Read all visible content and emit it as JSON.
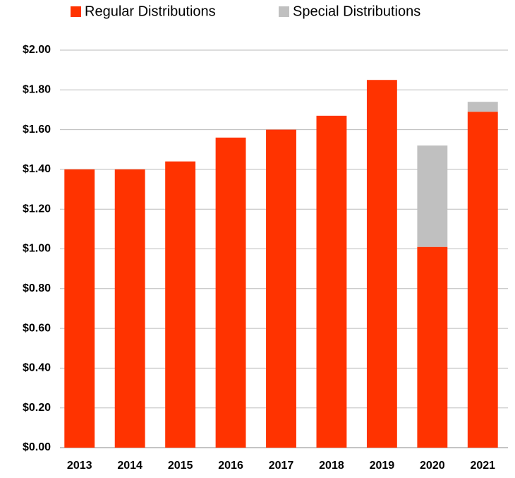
{
  "chart_data": {
    "type": "stacked_bar",
    "categories": [
      "2013",
      "2014",
      "2015",
      "2016",
      "2017",
      "2018",
      "2019",
      "2020",
      "2021"
    ],
    "series": [
      {
        "name": "Regular Distributions",
        "color": "#ff3300",
        "values": [
          1.4,
          1.4,
          1.44,
          1.56,
          1.6,
          1.67,
          1.85,
          1.01,
          1.69
        ]
      },
      {
        "name": "Special Distributions",
        "color": "#c0c0c0",
        "values": [
          null,
          null,
          null,
          null,
          null,
          null,
          null,
          0.51,
          0.05
        ]
      }
    ],
    "ylim": [
      0,
      2
    ],
    "yticks": [
      {
        "value": 0,
        "label": "$0.00"
      },
      {
        "value": 0.2,
        "label": "$0.20"
      },
      {
        "value": 0.4,
        "label": "$0.40"
      },
      {
        "value": 0.6,
        "label": "$0.60"
      },
      {
        "value": 0.8,
        "label": "$0.80"
      },
      {
        "value": 1,
        "label": "$1.00"
      },
      {
        "value": 1.2,
        "label": "$1.20"
      },
      {
        "value": 1.4,
        "label": "$1.40"
      },
      {
        "value": 1.6,
        "label": "$1.60"
      },
      {
        "value": 1.8,
        "label": "$1.80"
      },
      {
        "value": 2,
        "label": "$2.00"
      }
    ],
    "grid": true,
    "legend": "top"
  }
}
